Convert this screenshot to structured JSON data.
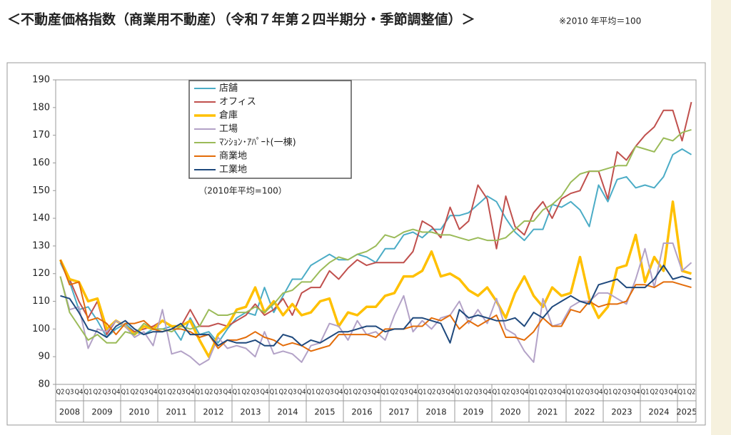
{
  "chart_data": {
    "type": "line",
    "title": "＜不動産価格指数（商業用不動産）（令和７年第２四半期分・季節調整値）＞",
    "subtitle": "※2010 年平均＝100",
    "annotation": "（2010年平均=100）",
    "categories": [
      "Q2",
      "Q3",
      "Q4",
      "Q1",
      "Q2",
      "Q3",
      "Q4",
      "Q1",
      "Q2",
      "Q3",
      "Q4",
      "Q1",
      "Q2",
      "Q3",
      "Q4",
      "Q1",
      "Q2",
      "Q3",
      "Q4",
      "Q1",
      "Q2",
      "Q3",
      "Q4",
      "Q1",
      "Q2",
      "Q3",
      "Q4",
      "Q1",
      "Q2",
      "Q3",
      "Q4",
      "Q1",
      "Q2",
      "Q3",
      "Q4",
      "Q1",
      "Q2",
      "Q3",
      "Q4",
      "Q1",
      "Q2",
      "Q3",
      "Q4",
      "Q1",
      "Q2",
      "Q3",
      "Q4",
      "Q1",
      "Q2",
      "Q3",
      "Q4",
      "Q1",
      "Q2",
      "Q3",
      "Q4",
      "Q1",
      "Q2",
      "Q3",
      "Q4",
      "Q1",
      "Q2",
      "Q3",
      "Q4",
      "Q1",
      "Q2",
      "Q3",
      "Q4",
      "Q1",
      "Q2"
    ],
    "years": [
      "2008",
      "2009",
      "2010",
      "2011",
      "2012",
      "2013",
      "2014",
      "2015",
      "2016",
      "2017",
      "2018",
      "2019",
      "2020",
      "2021",
      "2022",
      "2023",
      "2024",
      "2025"
    ],
    "ylim": [
      80,
      190
    ],
    "yticks": [
      80,
      90,
      100,
      110,
      120,
      130,
      140,
      150,
      160,
      170,
      180,
      190
    ],
    "grid": false,
    "series": [
      {
        "name": "店舗",
        "color": "#4bacc6",
        "width": 2,
        "values": [
          124,
          117,
          107,
          108,
          103,
          97,
          100,
          102,
          99,
          98,
          100,
          100,
          101,
          96,
          104,
          98,
          99,
          95,
          100,
          104,
          106,
          105,
          115,
          106,
          112,
          118,
          118,
          123,
          125,
          127,
          125,
          125,
          127,
          126,
          124,
          129,
          129,
          134,
          135,
          133,
          136,
          136,
          141,
          141,
          142,
          145,
          148,
          146,
          140,
          135,
          132,
          136,
          136,
          145,
          144,
          146,
          143,
          137,
          152,
          146,
          154,
          155,
          151,
          152,
          151,
          155,
          163,
          165,
          163
        ]
      },
      {
        "name": "オフィス",
        "color": "#c0504d",
        "width": 2,
        "values": [
          125,
          118,
          110,
          104,
          110,
          98,
          103,
          101,
          99,
          100,
          101,
          103,
          101,
          101,
          107,
          101,
          101,
          102,
          101,
          103,
          105,
          109,
          105,
          107,
          111,
          105,
          113,
          115,
          115,
          121,
          118,
          122,
          125,
          123,
          124,
          124,
          124,
          124,
          128,
          139,
          137,
          133,
          144,
          136,
          139,
          152,
          147,
          129,
          148,
          137,
          134,
          142,
          146,
          140,
          147,
          149,
          150,
          157,
          157,
          147,
          164,
          161,
          166,
          170,
          173,
          179,
          179,
          168,
          182
        ]
      },
      {
        "name": "倉庫",
        "color": "#ffc000",
        "width": 3.5,
        "values": [
          125,
          118,
          117,
          110,
          111,
          100,
          103,
          101,
          98,
          101,
          100,
          103,
          101,
          101,
          103,
          96,
          90,
          98,
          101,
          107,
          108,
          115,
          106,
          110,
          105,
          109,
          105,
          106,
          110,
          111,
          101,
          106,
          105,
          108,
          108,
          112,
          113,
          119,
          119,
          121,
          128,
          119,
          120,
          118,
          114,
          112,
          115,
          110,
          104,
          113,
          119,
          112,
          108,
          115,
          112,
          113,
          126,
          111,
          104,
          108,
          122,
          123,
          134,
          117,
          126,
          121,
          146,
          121,
          120
        ]
      },
      {
        "name": "工場",
        "color": "#b3a2c7",
        "width": 2,
        "values": [
          119,
          107,
          108,
          93,
          100,
          99,
          103,
          101,
          97,
          99,
          94,
          107,
          91,
          92,
          90,
          87,
          89,
          97,
          93,
          94,
          93,
          90,
          99,
          91,
          92,
          91,
          88,
          94,
          95,
          102,
          101,
          96,
          103,
          98,
          99,
          96,
          105,
          112,
          99,
          103,
          100,
          104,
          105,
          110,
          102,
          107,
          102,
          111,
          100,
          98,
          92,
          88,
          111,
          101,
          102,
          108,
          110,
          110,
          113,
          113,
          111,
          109,
          118,
          129,
          115,
          131,
          131,
          121,
          124
        ]
      },
      {
        "name": "ﾏﾝｼｮﾝ･ｱﾊﾟｰﾄ(一棟)",
        "color": "#9bbb59",
        "width": 2,
        "values": [
          119,
          106,
          101,
          96,
          98,
          95,
          95,
          99,
          98,
          102,
          100,
          100,
          99,
          101,
          100,
          101,
          107,
          105,
          105,
          106,
          106,
          108,
          106,
          109,
          113,
          114,
          117,
          117,
          121,
          124,
          126,
          125,
          127,
          128,
          130,
          134,
          133,
          135,
          136,
          135,
          135,
          134,
          134,
          133,
          132,
          133,
          132,
          132,
          133,
          136,
          139,
          139,
          143,
          145,
          148,
          153,
          156,
          157,
          157,
          158,
          159,
          159,
          166,
          165,
          164,
          169,
          168,
          171,
          172
        ]
      },
      {
        "name": "商業地",
        "color": "#e36c09",
        "width": 2,
        "values": [
          125,
          116,
          117,
          103,
          104,
          102,
          98,
          102,
          102,
          103,
          100,
          99,
          100,
          100,
          99,
          97,
          98,
          93,
          96,
          96,
          97,
          99,
          97,
          96,
          94,
          95,
          94,
          92,
          93,
          94,
          98,
          98,
          98,
          98,
          97,
          100,
          100,
          100,
          101,
          101,
          104,
          103,
          105,
          100,
          103,
          101,
          103,
          105,
          97,
          97,
          96,
          99,
          104,
          101,
          101,
          107,
          106,
          110,
          108,
          109,
          109,
          110,
          116,
          116,
          115,
          117,
          117,
          116,
          115
        ]
      },
      {
        "name": "工業地",
        "color": "#1f497d",
        "width": 2,
        "values": [
          112,
          111,
          106,
          100,
          99,
          97,
          101,
          103,
          100,
          98,
          99,
          99,
          100,
          102,
          98,
          98,
          98,
          94,
          96,
          95,
          95,
          96,
          94,
          94,
          98,
          97,
          94,
          96,
          95,
          97,
          99,
          99,
          100,
          101,
          101,
          99,
          100,
          100,
          104,
          104,
          103,
          102,
          95,
          107,
          104,
          105,
          104,
          103,
          103,
          104,
          101,
          106,
          104,
          108,
          110,
          112,
          110,
          109,
          116,
          117,
          118,
          115,
          115,
          115,
          118,
          123,
          118,
          119,
          118
        ]
      }
    ]
  }
}
